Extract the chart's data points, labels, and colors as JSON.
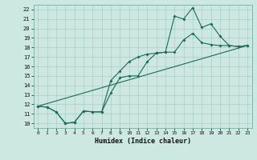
{
  "xlabel": "Humidex (Indice chaleur)",
  "ylabel": "",
  "bg_color": "#cce8e0",
  "line_color": "#1a6b5a",
  "xlim": [
    -0.5,
    23.5
  ],
  "ylim": [
    9.5,
    22.5
  ],
  "xticks": [
    0,
    1,
    2,
    3,
    4,
    5,
    6,
    7,
    8,
    9,
    10,
    11,
    12,
    13,
    14,
    15,
    16,
    17,
    18,
    19,
    20,
    21,
    22,
    23
  ],
  "yticks": [
    10,
    11,
    12,
    13,
    14,
    15,
    16,
    17,
    18,
    19,
    20,
    21,
    22
  ],
  "line1_x": [
    0,
    1,
    2,
    3,
    4,
    5,
    6,
    7,
    8,
    9,
    10,
    11,
    12,
    13,
    14,
    15,
    16,
    17,
    18,
    19,
    20,
    21,
    22,
    23
  ],
  "line1_y": [
    11.8,
    11.7,
    11.2,
    10.0,
    10.1,
    11.3,
    11.2,
    11.2,
    13.2,
    14.8,
    15.0,
    15.0,
    16.5,
    17.4,
    17.5,
    21.3,
    21.0,
    22.2,
    20.1,
    20.5,
    19.2,
    18.2,
    18.1,
    18.2
  ],
  "line2_x": [
    0,
    1,
    2,
    3,
    4,
    5,
    6,
    7,
    8,
    9,
    10,
    11,
    12,
    13,
    14,
    15,
    16,
    17,
    18,
    19,
    20,
    21,
    22,
    23
  ],
  "line2_y": [
    11.8,
    11.7,
    11.2,
    10.0,
    10.1,
    11.3,
    11.2,
    11.2,
    14.5,
    15.5,
    16.5,
    17.0,
    17.3,
    17.4,
    17.5,
    17.5,
    18.8,
    19.5,
    18.5,
    18.3,
    18.2,
    18.2,
    18.1,
    18.2
  ],
  "line3_x": [
    0,
    23
  ],
  "line3_y": [
    11.8,
    18.2
  ]
}
